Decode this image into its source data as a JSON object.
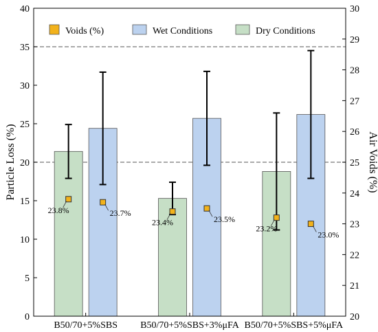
{
  "chart_data": {
    "type": "bar",
    "categories": [
      "B50/70+5%SBS",
      "B50/70+5%SBS+3%μFA",
      "B50/70+5%SBS+5%μFA"
    ],
    "series": [
      {
        "name": "Dry Conditions",
        "values": [
          21.4,
          15.3,
          18.8
        ],
        "errors": [
          3.5,
          2.1,
          7.6
        ],
        "color": "#c6dfc6"
      },
      {
        "name": "Wet Conditions",
        "values": [
          24.4,
          25.7,
          26.2
        ],
        "errors": [
          7.3,
          6.1,
          8.3
        ],
        "color": "#bcd2ef"
      }
    ],
    "voids": {
      "name": "Voids (%)",
      "axis": "right",
      "color": "#f2b21b",
      "points": [
        {
          "series": 0,
          "category": 0,
          "value": 23.8,
          "label": "23.8%"
        },
        {
          "series": 1,
          "category": 0,
          "value": 23.7,
          "label": "23.7%"
        },
        {
          "series": 0,
          "category": 1,
          "value": 23.4,
          "label": "23.4%"
        },
        {
          "series": 1,
          "category": 1,
          "value": 23.5,
          "label": "23.5%"
        },
        {
          "series": 0,
          "category": 2,
          "value": 23.2,
          "label": "23.2%"
        },
        {
          "series": 1,
          "category": 2,
          "value": 23.0,
          "label": "23.0%"
        }
      ]
    },
    "ylabel": "Particle Loss (%)",
    "ylim": [
      0,
      40
    ],
    "yticks": [
      0,
      5,
      10,
      15,
      20,
      25,
      30,
      35,
      40
    ],
    "y2label": "Air Voids (%)",
    "y2lim": [
      20,
      30
    ],
    "y2ticks": [
      20,
      21,
      22,
      23,
      24,
      25,
      26,
      27,
      28,
      29,
      30
    ],
    "reference_lines": [
      20,
      35
    ],
    "legend": [
      "Voids (%)",
      "Wet Conditions",
      "Dry Conditions"
    ],
    "legend_position": "top",
    "grid": false
  }
}
